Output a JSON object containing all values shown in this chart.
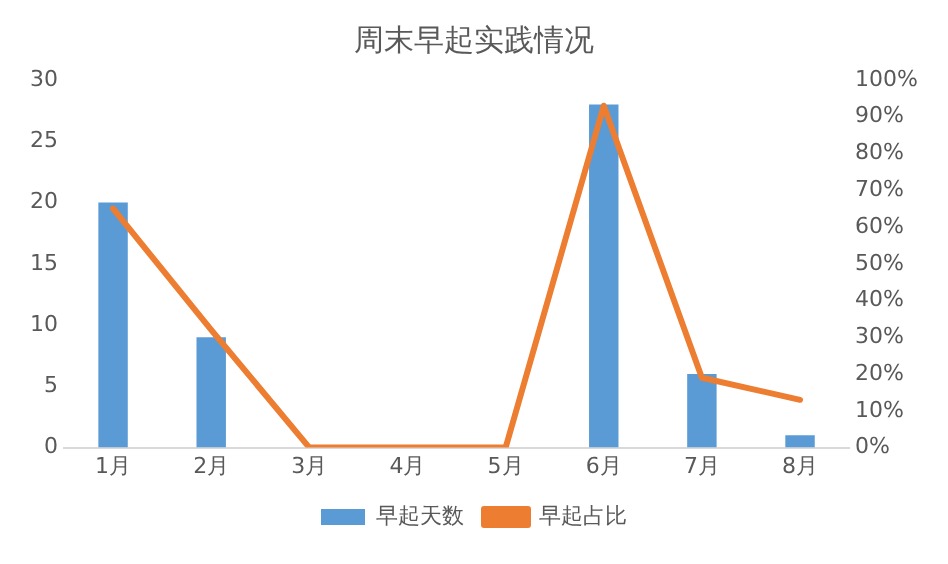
{
  "chart_data": {
    "type": "bar",
    "title": "周末早起实践情况",
    "categories": [
      "1月",
      "2月",
      "3月",
      "4月",
      "5月",
      "6月",
      "7月",
      "8月"
    ],
    "series": [
      {
        "name": "早起天数",
        "color": "#5b9bd5",
        "values": [
          20,
          9,
          0,
          0,
          0,
          28,
          6,
          1
        ]
      },
      {
        "name": "早起占比",
        "type": "line",
        "axis": "y2",
        "color": "#ed7d31",
        "values": [
          65,
          32,
          0,
          0,
          0,
          93,
          19,
          13
        ]
      }
    ],
    "ylim": [
      0,
      30
    ],
    "yticks": [
      0,
      5,
      10,
      15,
      20,
      25,
      30
    ],
    "y2lim": [
      0,
      100
    ],
    "y2ticks": [
      {
        "value": 0,
        "label": "0%"
      },
      {
        "value": 10,
        "label": "10%"
      },
      {
        "value": 20,
        "label": "20%"
      },
      {
        "value": 30,
        "label": "30%"
      },
      {
        "value": 40,
        "label": "40%"
      },
      {
        "value": 50,
        "label": "50%"
      },
      {
        "value": 60,
        "label": "60%"
      },
      {
        "value": 70,
        "label": "70%"
      },
      {
        "value": 80,
        "label": "80%"
      },
      {
        "value": 90,
        "label": "90%"
      },
      {
        "value": 100,
        "label": "100%"
      }
    ],
    "grid": false,
    "legend": "bottom",
    "marker": "none",
    "line_style": "solid"
  }
}
